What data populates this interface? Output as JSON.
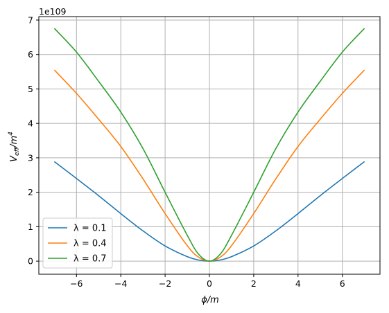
{
  "chart_data": {
    "type": "line",
    "title": "",
    "xlabel": "ϕ/m",
    "ylabel": "V_eff/m^4",
    "y_offset_text": "1e109",
    "xlim": [
      -7.7,
      7.7
    ],
    "ylim": [
      -0.38,
      7.1
    ],
    "x_ticks": [
      -6,
      -4,
      -2,
      0,
      2,
      4,
      6
    ],
    "x_tick_labels": [
      "−6",
      "−4",
      "−2",
      "0",
      "2",
      "4",
      "6"
    ],
    "y_ticks": [
      0,
      1,
      2,
      3,
      4,
      5,
      6,
      7
    ],
    "y_tick_labels": [
      "0",
      "1",
      "2",
      "3",
      "4",
      "5",
      "6",
      "7"
    ],
    "grid": true,
    "legend_position": "lower-left",
    "x": [
      -7,
      -6,
      -5,
      -4,
      -3,
      -2,
      -1,
      -0.5,
      0,
      0.5,
      1,
      2,
      3,
      4,
      5,
      6,
      7
    ],
    "series": [
      {
        "name": "λ = 0.1",
        "color": "#1f77b4",
        "values": [
          2.89,
          2.4,
          1.9,
          1.38,
          0.88,
          0.44,
          0.13,
          0.035,
          0.0,
          0.035,
          0.13,
          0.44,
          0.88,
          1.38,
          1.9,
          2.4,
          2.89
        ]
      },
      {
        "name": "λ = 0.4",
        "color": "#ff7f0e",
        "values": [
          5.55,
          4.87,
          4.12,
          3.33,
          2.39,
          1.38,
          0.45,
          0.12,
          0.0,
          0.12,
          0.45,
          1.38,
          2.39,
          3.33,
          4.12,
          4.87,
          5.55
        ]
      },
      {
        "name": "λ = 0.7",
        "color": "#2ca02c",
        "values": [
          6.76,
          6.07,
          5.22,
          4.33,
          3.27,
          2.0,
          0.75,
          0.21,
          0.0,
          0.21,
          0.75,
          2.0,
          3.27,
          4.33,
          5.22,
          6.07,
          6.76
        ]
      }
    ]
  }
}
